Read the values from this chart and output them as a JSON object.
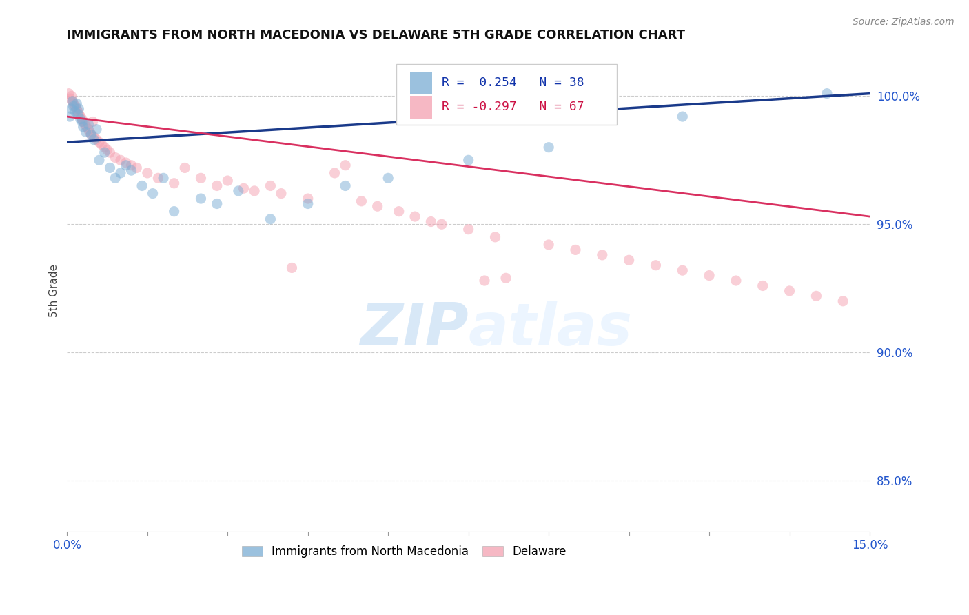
{
  "title": "IMMIGRANTS FROM NORTH MACEDONIA VS DELAWARE 5TH GRADE CORRELATION CHART",
  "source": "Source: ZipAtlas.com",
  "ylabel": "5th Grade",
  "right_yticks": [
    100.0,
    95.0,
    90.0,
    85.0
  ],
  "right_ytick_labels": [
    "100.0%",
    "95.0%",
    "90.0%",
    "85.0%"
  ],
  "xlim": [
    0.0,
    15.0
  ],
  "ylim": [
    83.0,
    101.8
  ],
  "legend_blue_label": "Immigrants from North Macedonia",
  "legend_pink_label": "Delaware",
  "R_blue": 0.254,
  "N_blue": 38,
  "R_pink": -0.297,
  "N_pink": 67,
  "blue_color": "#7aadd4",
  "pink_color": "#f4a0b0",
  "blue_line_color": "#1a3a8a",
  "pink_line_color": "#d93060",
  "watermark_color": "#ddeeff",
  "blue_x": [
    0.05,
    0.08,
    0.1,
    0.12,
    0.15,
    0.18,
    0.2,
    0.22,
    0.25,
    0.28,
    0.3,
    0.35,
    0.4,
    0.45,
    0.5,
    0.55,
    0.6,
    0.7,
    0.8,
    0.9,
    1.0,
    1.1,
    1.2,
    1.4,
    1.6,
    1.8,
    2.0,
    2.5,
    2.8,
    3.2,
    3.8,
    4.5,
    5.2,
    6.0,
    7.5,
    9.0,
    11.5,
    14.2
  ],
  "blue_y": [
    99.2,
    99.5,
    99.8,
    99.6,
    99.4,
    99.7,
    99.3,
    99.5,
    99.1,
    99.0,
    98.8,
    98.6,
    98.9,
    98.5,
    98.3,
    98.7,
    97.5,
    97.8,
    97.2,
    96.8,
    97.0,
    97.3,
    97.1,
    96.5,
    96.2,
    96.8,
    95.5,
    96.0,
    95.8,
    96.3,
    95.2,
    95.8,
    96.5,
    96.8,
    97.5,
    98.0,
    99.2,
    100.1
  ],
  "pink_x": [
    0.03,
    0.06,
    0.08,
    0.1,
    0.12,
    0.15,
    0.18,
    0.2,
    0.22,
    0.25,
    0.28,
    0.3,
    0.33,
    0.36,
    0.4,
    0.42,
    0.45,
    0.48,
    0.5,
    0.55,
    0.6,
    0.65,
    0.7,
    0.75,
    0.8,
    0.9,
    1.0,
    1.1,
    1.2,
    1.3,
    1.5,
    1.7,
    2.0,
    2.2,
    2.5,
    2.8,
    3.0,
    3.3,
    3.5,
    3.8,
    4.0,
    4.2,
    4.5,
    5.0,
    5.2,
    5.5,
    5.8,
    6.2,
    6.5,
    6.8,
    7.0,
    7.5,
    7.8,
    8.0,
    8.2,
    9.0,
    9.5,
    10.0,
    10.5,
    11.0,
    11.5,
    12.0,
    12.5,
    13.0,
    13.5,
    14.0,
    14.5
  ],
  "pink_y": [
    100.1,
    99.9,
    100.0,
    99.8,
    99.7,
    99.6,
    99.5,
    99.4,
    99.3,
    99.2,
    99.1,
    99.0,
    98.9,
    98.8,
    98.7,
    98.6,
    98.5,
    99.0,
    98.4,
    98.3,
    98.2,
    98.1,
    98.0,
    97.9,
    97.8,
    97.6,
    97.5,
    97.4,
    97.3,
    97.2,
    97.0,
    96.8,
    96.6,
    97.2,
    96.8,
    96.5,
    96.7,
    96.4,
    96.3,
    96.5,
    96.2,
    93.3,
    96.0,
    97.0,
    97.3,
    95.9,
    95.7,
    95.5,
    95.3,
    95.1,
    95.0,
    94.8,
    92.8,
    94.5,
    92.9,
    94.2,
    94.0,
    93.8,
    93.6,
    93.4,
    93.2,
    93.0,
    92.8,
    92.6,
    92.4,
    92.2,
    92.0
  ]
}
